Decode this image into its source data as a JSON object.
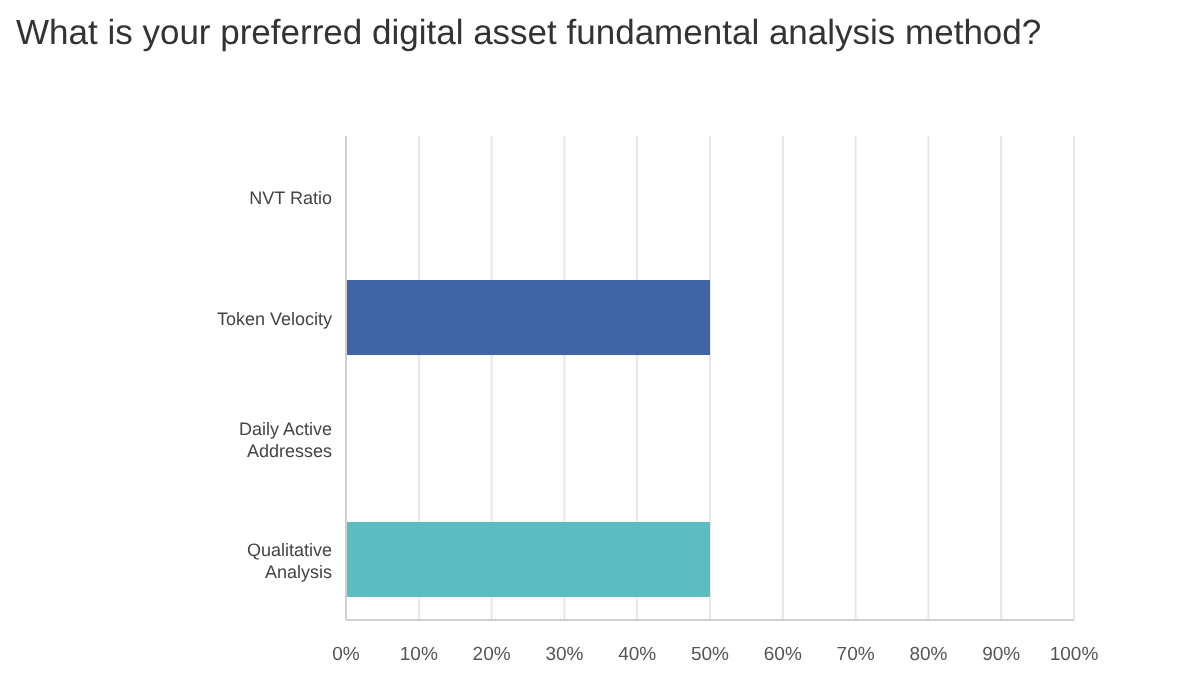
{
  "chart_data": {
    "type": "bar",
    "orientation": "horizontal",
    "title": "What is your preferred digital asset fundamental analysis method?",
    "categories": [
      "NVT Ratio",
      "Token Velocity",
      "Daily Active Addresses",
      "Qualitative Analysis"
    ],
    "values": [
      0,
      50,
      0,
      50
    ],
    "colors": [
      "#3f64a8",
      "#3f64a8",
      "#5bbdc0",
      "#5bbdc0"
    ],
    "xlim": [
      0,
      100
    ],
    "xticks": [
      {
        "value": 0,
        "label": "0%"
      },
      {
        "value": 10,
        "label": "10%"
      },
      {
        "value": 20,
        "label": "20%"
      },
      {
        "value": 30,
        "label": "30%"
      },
      {
        "value": 40,
        "label": "40%"
      },
      {
        "value": 50,
        "label": "50%"
      },
      {
        "value": 60,
        "label": "60%"
      },
      {
        "value": 70,
        "label": "70%"
      },
      {
        "value": 80,
        "label": "80%"
      },
      {
        "value": 90,
        "label": "90%"
      },
      {
        "value": 100,
        "label": "100%"
      }
    ],
    "grid": "x"
  }
}
